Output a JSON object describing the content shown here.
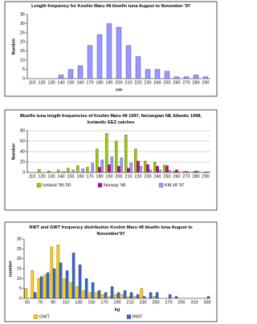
{
  "chart_data": [
    {
      "type": "bar",
      "title": "Length frequency for Koshin Maru #8 bluefin tuna August to November '97",
      "x_label": "cm",
      "y_label": "Number",
      "categories": [
        110,
        120,
        130,
        140,
        150,
        160,
        170,
        180,
        190,
        200,
        210,
        220,
        230,
        240,
        250,
        260,
        270,
        280,
        290
      ],
      "series": [
        {
          "name": null,
          "color": "#9999ff",
          "values": [
            0,
            0,
            0,
            2,
            5,
            7,
            18,
            24,
            30,
            28,
            18,
            12,
            5,
            5,
            4,
            1,
            1,
            2,
            1
          ]
        }
      ],
      "ylim": [
        0,
        35
      ],
      "yticks": [
        0,
        5,
        10,
        15,
        20,
        25,
        30,
        35
      ],
      "grid": false
    },
    {
      "type": "bar",
      "title": "Bluefin tuna length frequencies of Koshin Maru #8 1997, Norwegian NE Atlantic 1998, Icelandic EEZ catches",
      "y_label": "Number",
      "categories": [
        110,
        120,
        130,
        140,
        150,
        160,
        170,
        180,
        190,
        200,
        210,
        220,
        230,
        240,
        250,
        260,
        270,
        280,
        290
      ],
      "series": [
        {
          "name": "Iceland '99,'00",
          "color": "#99cc00",
          "values": [
            0,
            6,
            3,
            5,
            8,
            13,
            10,
            45,
            75,
            60,
            72,
            45,
            22,
            20,
            14,
            3,
            2,
            1,
            0
          ]
        },
        {
          "name": "Norway '98",
          "color": "#cc0099",
          "values": [
            0,
            0,
            0,
            0,
            0,
            0,
            0,
            10,
            15,
            12,
            8,
            22,
            15,
            12,
            13,
            5,
            2,
            3,
            1
          ]
        },
        {
          "name": "KM #8 '97",
          "color": "#9999ff",
          "values": [
            0,
            0,
            0,
            2,
            5,
            7,
            18,
            24,
            30,
            28,
            18,
            12,
            5,
            5,
            4,
            1,
            1,
            2,
            1
          ]
        }
      ],
      "ylim": [
        0,
        80
      ],
      "yticks": [
        0,
        20,
        40,
        60,
        80
      ],
      "grid": true,
      "legend": "bottom"
    },
    {
      "type": "bar",
      "title": "RWT and GWT frequency distribution Koshin Maru #8 bluefin tuna August to November'97",
      "x_label": "kg",
      "y_label": "number",
      "categories": [
        50,
        null,
        70,
        null,
        90,
        null,
        110,
        null,
        130,
        null,
        150,
        null,
        170,
        null,
        190,
        null,
        210,
        null,
        230,
        null,
        250,
        null,
        270,
        null,
        290,
        null,
        310,
        null,
        330
      ],
      "series": [
        {
          "name": "GWT",
          "color": "#ffcc00",
          "values": [
            5,
            14,
            10,
            12,
            26,
            27,
            10,
            8,
            6,
            4,
            3,
            3,
            2,
            1,
            2,
            2,
            1,
            1,
            5,
            0,
            1,
            0,
            0,
            0,
            0,
            0,
            0,
            0,
            0
          ]
        },
        {
          "name": "RWT",
          "color": "#3366cc",
          "values": [
            0,
            3,
            11,
            13,
            15,
            18,
            14,
            23,
            17,
            10,
            8,
            4,
            3,
            6,
            3,
            4,
            3,
            2,
            1,
            3,
            3,
            0,
            2,
            1,
            0,
            0,
            0,
            0,
            1
          ]
        }
      ],
      "ylim": [
        0,
        30
      ],
      "yticks": [
        0,
        5,
        10,
        15,
        20,
        25,
        30
      ],
      "grid": false,
      "legend": "bottom"
    }
  ]
}
